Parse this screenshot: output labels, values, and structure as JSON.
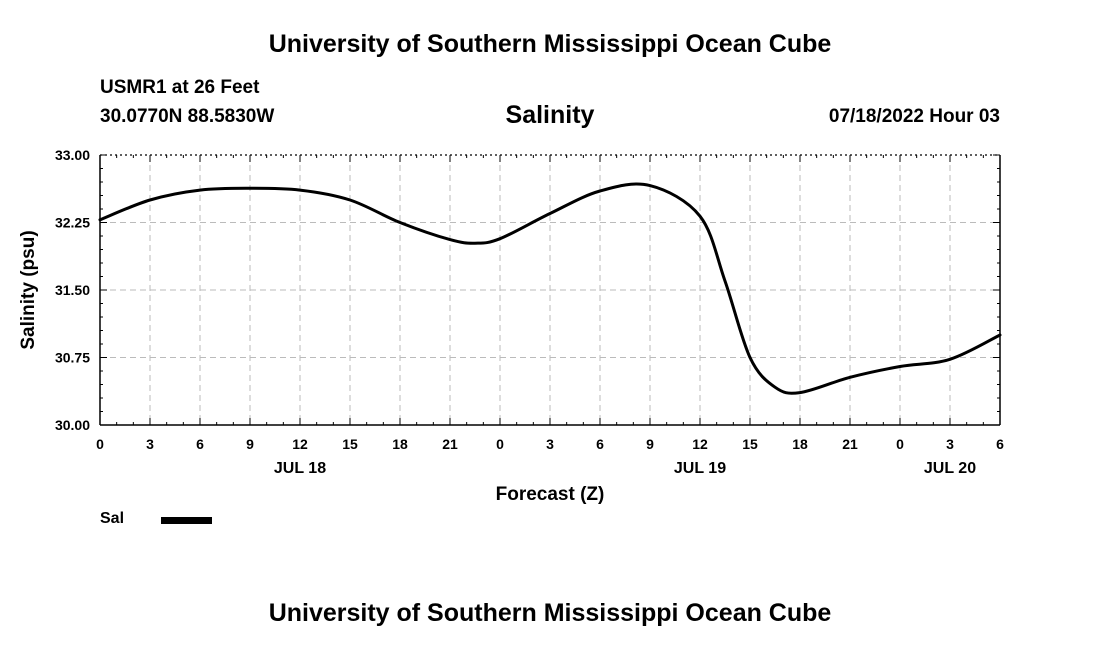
{
  "header": {
    "title": "University of Southern Mississippi Ocean Cube",
    "station": "USMR1 at 26 Feet",
    "coords": "30.0770N  88.5830W",
    "chart_title": "Salinity",
    "datetime": "07/18/2022 Hour 03"
  },
  "footer": {
    "title": "University of Southern Mississippi Ocean Cube"
  },
  "colors": {
    "line": "#000000",
    "grid": "#bbbbbb",
    "axis": "#000000"
  },
  "chart_data": {
    "type": "line",
    "title": "Salinity",
    "xlabel": "Forecast (Z)",
    "ylabel": "Salinity (psu)",
    "xlim": [
      0,
      54
    ],
    "ylim": [
      30.0,
      33.0
    ],
    "x_ticks": [
      0,
      3,
      6,
      9,
      12,
      15,
      18,
      21,
      24,
      27,
      30,
      33,
      36,
      39,
      42,
      45,
      48,
      51,
      54
    ],
    "x_tick_labels": [
      "0",
      "3",
      "6",
      "9",
      "12",
      "15",
      "18",
      "21",
      "0",
      "3",
      "6",
      "9",
      "12",
      "15",
      "18",
      "21",
      "0",
      "3",
      "6"
    ],
    "y_ticks": [
      30.0,
      30.75,
      31.5,
      32.25,
      33.0
    ],
    "y_tick_labels": [
      "30.00",
      "30.75",
      "31.50",
      "32.25",
      "33.00"
    ],
    "date_labels": [
      {
        "label": "JUL 18",
        "x": 12
      },
      {
        "label": "JUL 19",
        "x": 36
      },
      {
        "label": "JUL 20",
        "x": 51
      }
    ],
    "grid": true,
    "legend": {
      "position": "bottom-left",
      "entries": [
        "Sal"
      ]
    },
    "series": [
      {
        "name": "Sal",
        "x": [
          0,
          3,
          6,
          9,
          12,
          15,
          18,
          21,
          22.5,
          24,
          27,
          30,
          33,
          36,
          37.5,
          39,
          40.5,
          42,
          45,
          48,
          51,
          54
        ],
        "values": [
          32.28,
          32.5,
          32.61,
          32.63,
          32.61,
          32.5,
          32.25,
          32.06,
          32.02,
          32.07,
          32.35,
          32.6,
          32.66,
          32.32,
          31.6,
          30.75,
          30.42,
          30.36,
          30.53,
          30.65,
          30.73,
          31.0
        ]
      }
    ]
  }
}
